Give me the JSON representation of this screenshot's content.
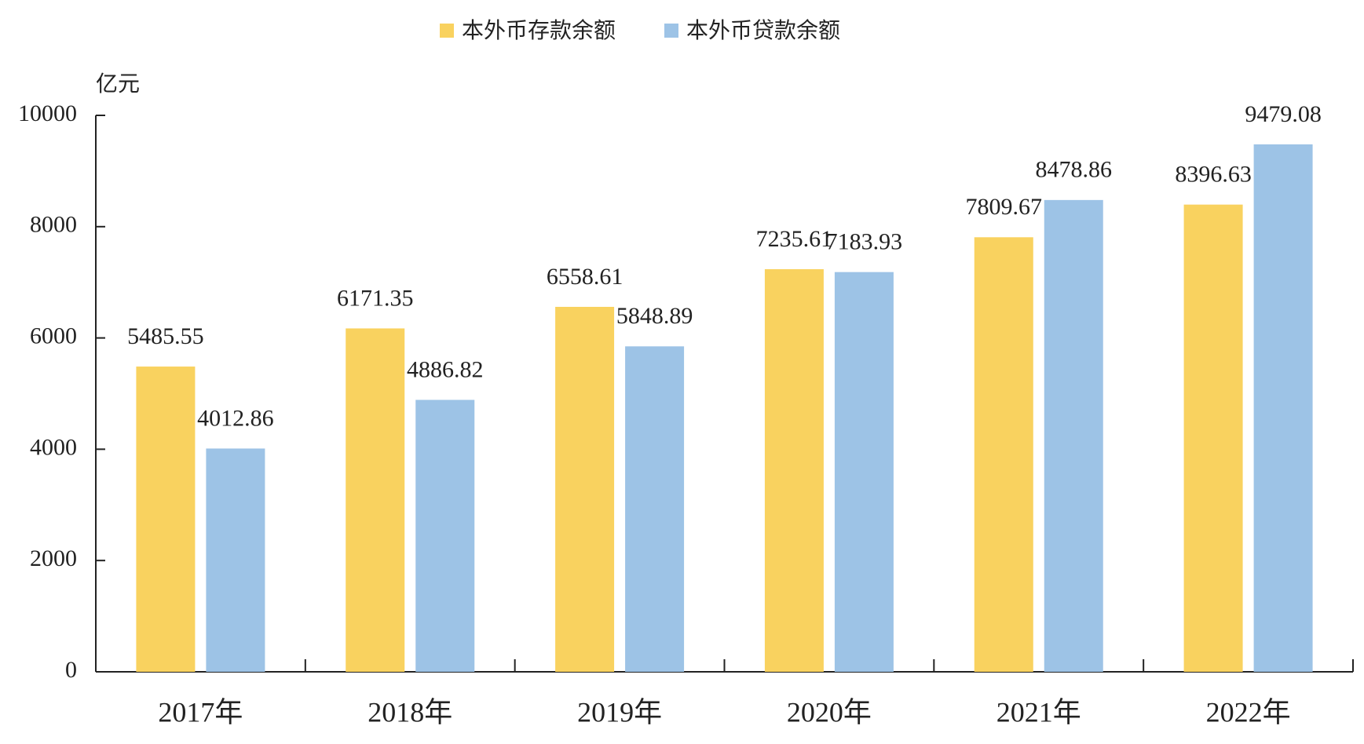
{
  "chart_data": {
    "type": "bar",
    "y_label": "亿元",
    "categories": [
      "2017年",
      "2018年",
      "2019年",
      "2020年",
      "2021年",
      "2022年"
    ],
    "series": [
      {
        "name": "本外币存款余额",
        "color": "#f9d25f",
        "values": [
          5485.55,
          6171.35,
          6558.61,
          7235.61,
          7809.67,
          8396.63
        ]
      },
      {
        "name": "本外币贷款余额",
        "color": "#9dc3e6",
        "values": [
          4012.86,
          4886.82,
          5848.89,
          7183.93,
          8478.86,
          9479.08
        ]
      }
    ],
    "ylim": [
      0,
      10000
    ],
    "yticks": [
      0,
      2000,
      4000,
      6000,
      8000,
      10000
    ],
    "legend": "top"
  }
}
